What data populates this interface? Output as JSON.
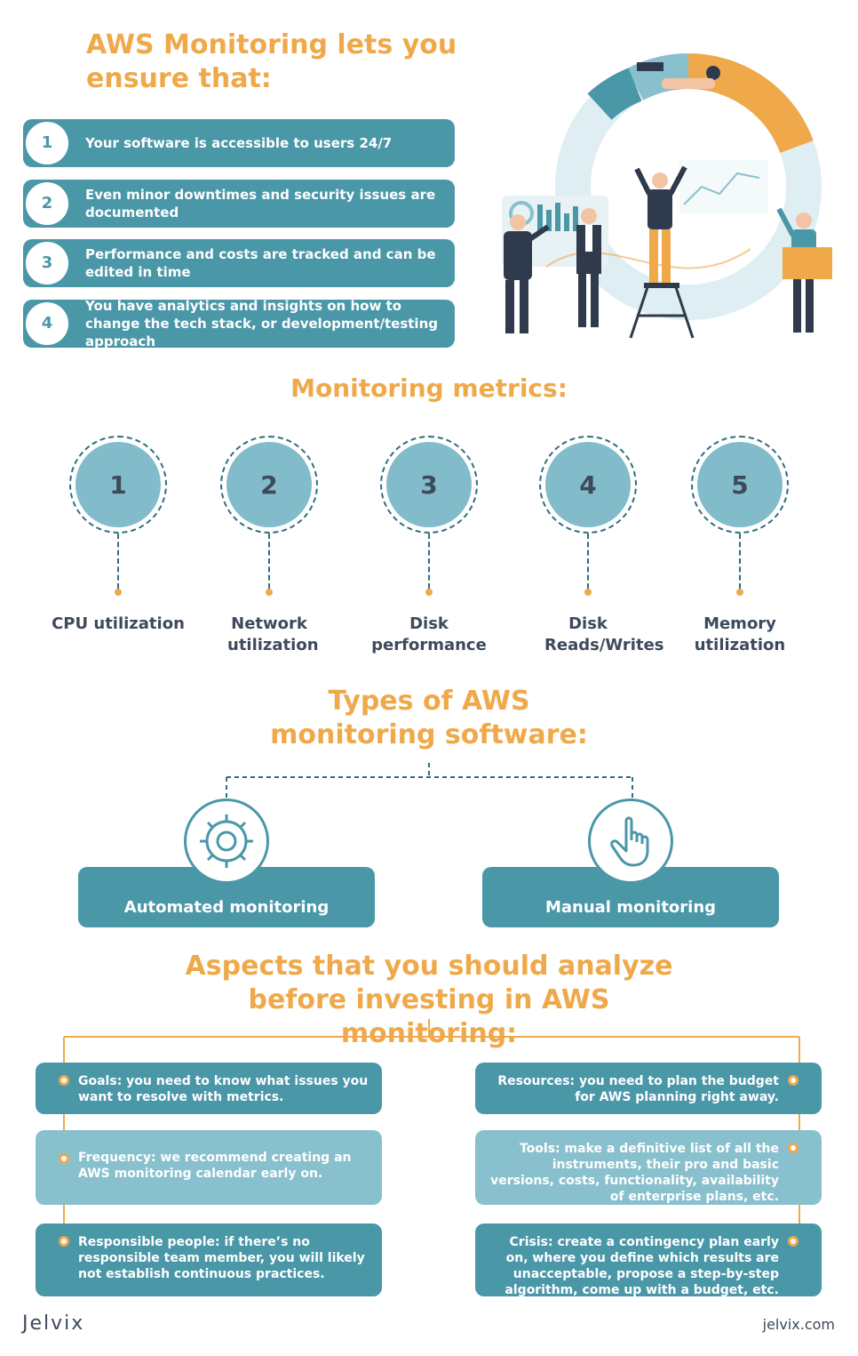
{
  "title": "AWS Monitoring lets you ensure that:",
  "list": [
    {
      "num": "1",
      "text": "Your software is accessible to users 24/7"
    },
    {
      "num": "2",
      "text": "Even minor downtimes and security issues are documented"
    },
    {
      "num": "3",
      "text": "Performance and costs are tracked and can be edited in time"
    },
    {
      "num": "4",
      "text": "You have analytics and insights on how to change the tech stack, or development/testing approach"
    }
  ],
  "metrics_title": "Monitoring metrics:",
  "metrics": [
    {
      "num": "1",
      "label": "CPU utilization"
    },
    {
      "num": "2",
      "label": "Network utilization"
    },
    {
      "num": "3",
      "label": "Disk performance"
    },
    {
      "num": "4",
      "label": "Disk Reads/Writes"
    },
    {
      "num": "5",
      "label": "Memory utilization"
    }
  ],
  "types_title": "Types of AWS monitoring software:",
  "types": [
    {
      "label": "Automated monitoring",
      "icon": "gear-icon"
    },
    {
      "label": "Manual monitoring",
      "icon": "hand-pointer-icon"
    }
  ],
  "aspects_title": "Aspects that you should analyze before investing in AWS monitoring:",
  "aspects_left": [
    {
      "key": "Goals:",
      "text": "you need to know what issues you want to resolve with metrics."
    },
    {
      "key": "Frequency:",
      "text": "we recommend creating an AWS monitoring calendar early on."
    },
    {
      "key": "Responsible people:",
      "text": "if there’s no responsible team member, you will likely not establish continuous practices."
    }
  ],
  "aspects_right": [
    {
      "key": "Resources:",
      "text": "you need to plan the budget for AWS planning right away."
    },
    {
      "key": "Tools:",
      "text": "make a definitive list of all the instruments, their pro and basic versions, costs, functionality, availability of enterprise plans, etc."
    },
    {
      "key": "Crisis:",
      "text": "create a contingency plan early on, where you define which results are unacceptable, propose a step-by-step algorithm, come up with a budget, etc."
    }
  ],
  "footer": {
    "logo": "Jelvix",
    "url": "jelvix.com"
  },
  "colors": {
    "orange": "#efa94a",
    "teal": "#4a97a8",
    "light_teal": "#89c0cd",
    "dark": "#3d4a5c"
  }
}
